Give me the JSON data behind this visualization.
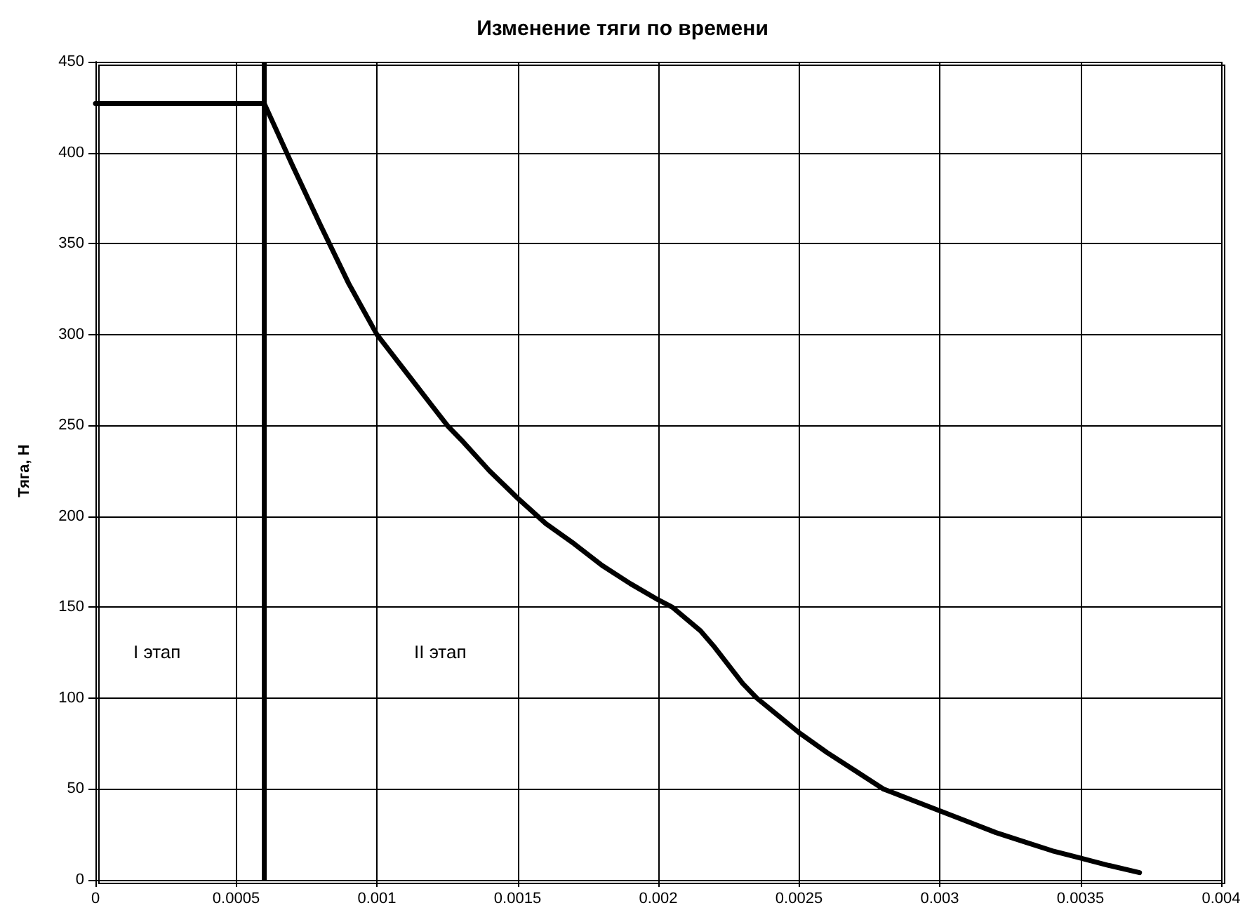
{
  "chart_data": {
    "type": "line",
    "title": "Изменение тяги по времени",
    "ylabel": "Тяга, Н",
    "annotations": [
      "I этап",
      "II этап"
    ],
    "x": [
      0,
      0.0006,
      0.00065,
      0.0007,
      0.0008,
      0.0009,
      0.001,
      0.0011,
      0.0012,
      0.00125,
      0.0013,
      0.0014,
      0.0015,
      0.0016,
      0.0017,
      0.0018,
      0.0019,
      0.002,
      0.00205,
      0.00215,
      0.0022,
      0.0023,
      0.00235,
      0.0025,
      0.0026,
      0.0027,
      0.0028,
      0.0029,
      0.003,
      0.0031,
      0.0032,
      0.0033,
      0.0034,
      0.0035,
      0.0036,
      0.00371
    ],
    "series": [
      {
        "color": "#000000",
        "values": [
          427,
          427,
          410,
          393,
          360,
          328,
          300,
          280,
          260,
          250,
          242,
          225,
          210,
          196,
          185,
          173,
          163,
          154,
          150,
          137,
          128,
          108,
          100,
          81,
          70,
          60,
          50,
          44,
          38,
          32,
          26,
          21,
          16,
          12,
          8,
          4
        ]
      }
    ],
    "ref_lines": [
      {
        "axis": "x",
        "value": 0.0006,
        "color": "#000000"
      }
    ],
    "xlim": [
      0,
      0.004
    ],
    "xticks": [
      0,
      0.0005,
      0.001,
      0.0015,
      0.002,
      0.0025,
      0.003,
      0.0035,
      0.004
    ],
    "ylim": [
      0,
      450
    ],
    "yticks": [
      0,
      50,
      100,
      150,
      200,
      250,
      300,
      350,
      400,
      450
    ],
    "grid": true,
    "marker": "none",
    "line_style": "solid"
  }
}
